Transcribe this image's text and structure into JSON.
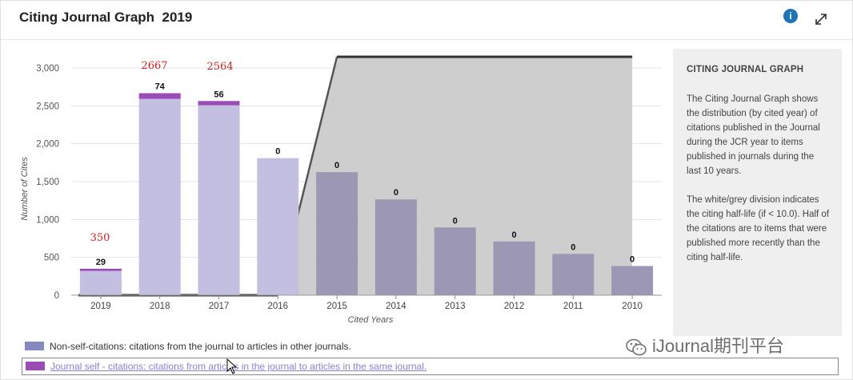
{
  "header": {
    "title": "Citing Journal Graph  2019",
    "info_icon": "info-icon",
    "expand_icon": "expand-icon"
  },
  "side_panel": {
    "title": "CITING JOURNAL GRAPH",
    "paragraph1": "The Citing Journal Graph shows the distribution (by cited year) of citations published in the Journal during the JCR year to items published in journals during the last 10 years.",
    "paragraph2": "The white/grey division indicates the citing half-life (if < 10.0). Half of the citations are to items that were published more recently than the citing half-life."
  },
  "legend": [
    {
      "label": "Non-self-citations: citations from the journal to articles in other journals.",
      "color": "#8888c0"
    },
    {
      "label": "Journal self - citations: citations from articles in the journal to articles in the same journal.",
      "color": "#9b4bb5"
    }
  ],
  "annotations": {
    "a2019": "350",
    "a2018": "2667",
    "a2017": "2564"
  },
  "watermark": "iJournal期刊平台",
  "colors": {
    "non_self": "#c2bfe0",
    "non_self_shaded": "#9c98b4",
    "self": "#9b4bb5",
    "shade": "#c9c9c9",
    "annotation": "#cc2222"
  },
  "chart_data": {
    "type": "bar",
    "title": "",
    "xlabel": "Cited Years",
    "ylabel": "Number of Cites",
    "ylim": [
      0,
      3000
    ],
    "yticks": [
      0,
      500,
      1000,
      1500,
      2000,
      2500,
      3000
    ],
    "ytick_labels": [
      "0",
      "500",
      "1,000",
      "1,500",
      "2,000",
      "2,500",
      "3,000"
    ],
    "categories": [
      "2019",
      "2018",
      "2017",
      "2016",
      "2015",
      "2014",
      "2013",
      "2012",
      "2011",
      "2010"
    ],
    "series": [
      {
        "name": "Non-self-citations: citations from the journal to articles in other journals.",
        "values": [
          321,
          2593,
          2508,
          1810,
          1625,
          1265,
          895,
          710,
          545,
          385
        ]
      },
      {
        "name": "Journal self - citations: citations from articles in the journal to articles in the same journal.",
        "values": [
          29,
          74,
          56,
          0,
          0,
          0,
          0,
          0,
          0,
          0
        ]
      }
    ],
    "data_labels": [
      "29",
      "74",
      "56",
      "0",
      "0",
      "0",
      "0",
      "0",
      "0",
      "0"
    ],
    "stacked": true,
    "grid": true,
    "half_life_shading": true,
    "legend_position": "bottom"
  }
}
